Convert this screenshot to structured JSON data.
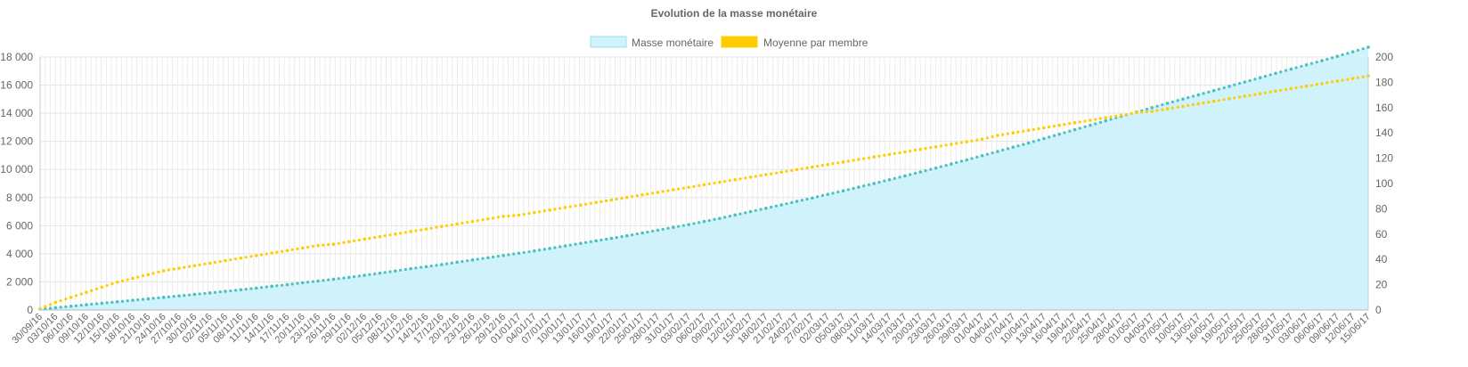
{
  "chart_data": {
    "type": "line",
    "title": "Evolution de la masse monétaire",
    "legend": {
      "position": "top",
      "entries": [
        "Masse monétaire",
        "Moyenne par membre"
      ]
    },
    "grid": true,
    "x_labels": [
      "30/09/16",
      "03/10/16",
      "06/10/16",
      "09/10/16",
      "12/10/16",
      "15/10/16",
      "18/10/16",
      "21/10/16",
      "24/10/16",
      "27/10/16",
      "30/10/16",
      "02/11/16",
      "05/11/16",
      "08/11/16",
      "11/11/16",
      "14/11/16",
      "17/11/16",
      "20/11/16",
      "23/11/16",
      "26/11/16",
      "29/11/16",
      "02/12/16",
      "05/12/16",
      "08/12/16",
      "11/12/16",
      "14/12/16",
      "17/12/16",
      "20/12/16",
      "23/12/16",
      "26/12/16",
      "29/12/16",
      "01/01/17",
      "04/01/17",
      "07/01/17",
      "10/01/17",
      "13/01/17",
      "16/01/17",
      "19/01/17",
      "22/01/17",
      "25/01/17",
      "28/01/17",
      "31/01/17",
      "03/02/17",
      "06/02/17",
      "09/02/17",
      "12/02/17",
      "15/02/17",
      "18/02/17",
      "21/02/17",
      "24/02/17",
      "27/02/17",
      "02/03/17",
      "05/03/17",
      "08/03/17",
      "11/03/17",
      "14/03/17",
      "17/03/17",
      "20/03/17",
      "23/03/17",
      "26/03/17",
      "29/03/17",
      "01/04/17",
      "04/04/17",
      "07/04/17",
      "10/04/17",
      "13/04/17",
      "16/04/17",
      "19/04/17",
      "22/04/17",
      "25/04/17",
      "28/04/17",
      "01/05/17",
      "04/05/17",
      "07/05/17",
      "10/05/17",
      "13/05/17",
      "16/05/17",
      "19/05/17",
      "22/05/17",
      "25/05/17",
      "28/05/17",
      "31/05/17",
      "03/06/17",
      "06/06/17",
      "09/06/17",
      "12/06/17",
      "15/06/17"
    ],
    "y_left": {
      "min": 0,
      "max": 18000,
      "ticks": [
        "0",
        "2 000",
        "4 000",
        "6 000",
        "8 000",
        "10 000",
        "12 000",
        "14 000",
        "16 000",
        "18 000"
      ]
    },
    "y_right": {
      "min": 0,
      "max": 200,
      "ticks": [
        "0",
        "20",
        "40",
        "60",
        "80",
        "100",
        "120",
        "140",
        "160",
        "180",
        "200"
      ]
    },
    "series": [
      {
        "name": "Masse monétaire",
        "axis": "left",
        "style": "area",
        "color": "#4bc0c0",
        "fill": "#cff2fb",
        "values": [
          60,
          165,
          270,
          375,
          480,
          585,
          690,
          795,
          900,
          1005,
          1110,
          1215,
          1330,
          1440,
          1560,
          1690,
          1800,
          1940,
          2060,
          2190,
          2320,
          2470,
          2620,
          2780,
          2940,
          3080,
          3230,
          3400,
          3560,
          3720,
          3880,
          4040,
          4200,
          4380,
          4560,
          4740,
          4920,
          5100,
          5280,
          5480,
          5680,
          5880,
          6080,
          6300,
          6520,
          6760,
          7000,
          7240,
          7480,
          7730,
          7970,
          8230,
          8480,
          8740,
          9000,
          9270,
          9540,
          9820,
          10100,
          10390,
          10680,
          10980,
          11280,
          11580,
          11880,
          12200,
          12510,
          12830,
          13140,
          13460,
          13780,
          14080,
          14400,
          14710,
          15010,
          15310,
          15610,
          15920,
          16220,
          16530,
          16840,
          17140,
          17440,
          17740,
          18050,
          18370,
          18700
        ]
      },
      {
        "name": "Moyenne par membre",
        "axis": "right",
        "style": "line",
        "color": "#ffcd00",
        "values": [
          1,
          6,
          10,
          14,
          18,
          22,
          25,
          28,
          31,
          33,
          35,
          37,
          39,
          41,
          43,
          45,
          47,
          49,
          51,
          52,
          54,
          56,
          58,
          60,
          62,
          64,
          66,
          68,
          70,
          72,
          74,
          75,
          77,
          79,
          81,
          83,
          85,
          87,
          89,
          91,
          93,
          95,
          97,
          99,
          101,
          103,
          105,
          107,
          109,
          111,
          113,
          115,
          117,
          119,
          121,
          123,
          125,
          127,
          129,
          131,
          133,
          135,
          138,
          140,
          142,
          144,
          146,
          148,
          150,
          152,
          154,
          156,
          157,
          159,
          161,
          163,
          165,
          167,
          169,
          171,
          173,
          175,
          177,
          179,
          181,
          183,
          185
        ]
      }
    ]
  }
}
